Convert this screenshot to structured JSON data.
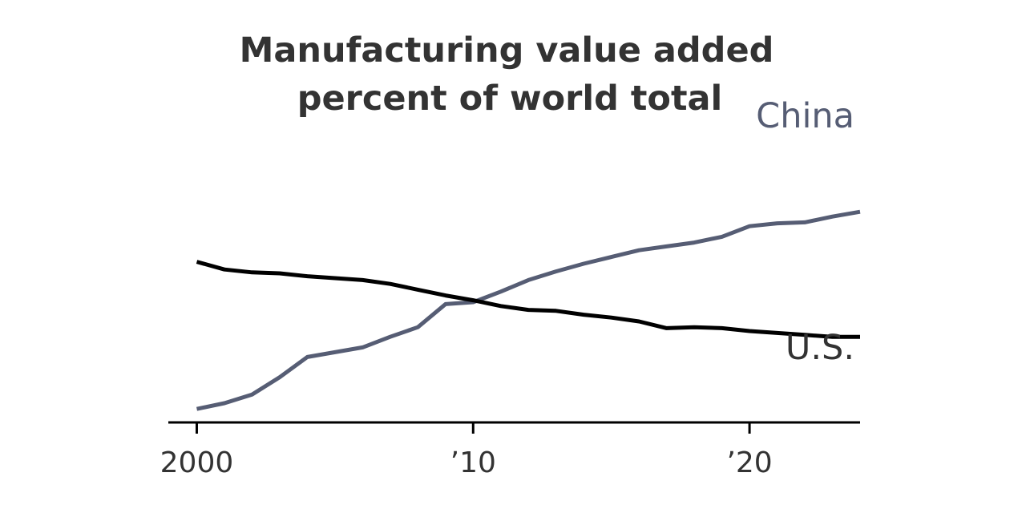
{
  "chart_data": {
    "type": "line",
    "title_lines": [
      "Manufacturing value added",
      "percent of world total"
    ],
    "xlabel": "",
    "ylabel": "",
    "grid": false,
    "legend": "direct labels at line ends",
    "x": [
      2000,
      2001,
      2002,
      2003,
      2004,
      2005,
      2006,
      2007,
      2008,
      2009,
      2010,
      2011,
      2012,
      2013,
      2014,
      2015,
      2016,
      2017,
      2018,
      2019,
      2020,
      2021,
      2022,
      2023,
      2024
    ],
    "xlim": [
      1999,
      2024
    ],
    "ylim": [
      5,
      35
    ],
    "x_ticks": [
      {
        "value": 2000,
        "label": "2000"
      },
      {
        "value": 2010,
        "label": "’10"
      },
      {
        "value": 2020,
        "label": "’20"
      }
    ],
    "series": [
      {
        "name": "China",
        "label": "China",
        "color": "#565d74",
        "values": [
          6.4,
          7.0,
          7.9,
          9.7,
          11.8,
          12.3,
          12.8,
          13.9,
          14.9,
          17.3,
          17.5,
          18.6,
          19.8,
          20.7,
          21.5,
          22.2,
          22.9,
          23.3,
          23.7,
          24.3,
          25.4,
          25.7,
          25.8,
          26.4,
          26.9
        ]
      },
      {
        "name": "U.S.",
        "label": "U.S.",
        "color": "#000000",
        "values": [
          21.7,
          20.9,
          20.6,
          20.5,
          20.2,
          20.0,
          19.8,
          19.4,
          18.8,
          18.2,
          17.7,
          17.1,
          16.7,
          16.6,
          16.2,
          15.9,
          15.5,
          14.8,
          14.9,
          14.8,
          14.5,
          14.3,
          14.1,
          13.9,
          13.9
        ]
      }
    ],
    "colors": {
      "axis": "#000000",
      "text": "#333333",
      "china": "#565d74",
      "us": "#000000"
    }
  }
}
